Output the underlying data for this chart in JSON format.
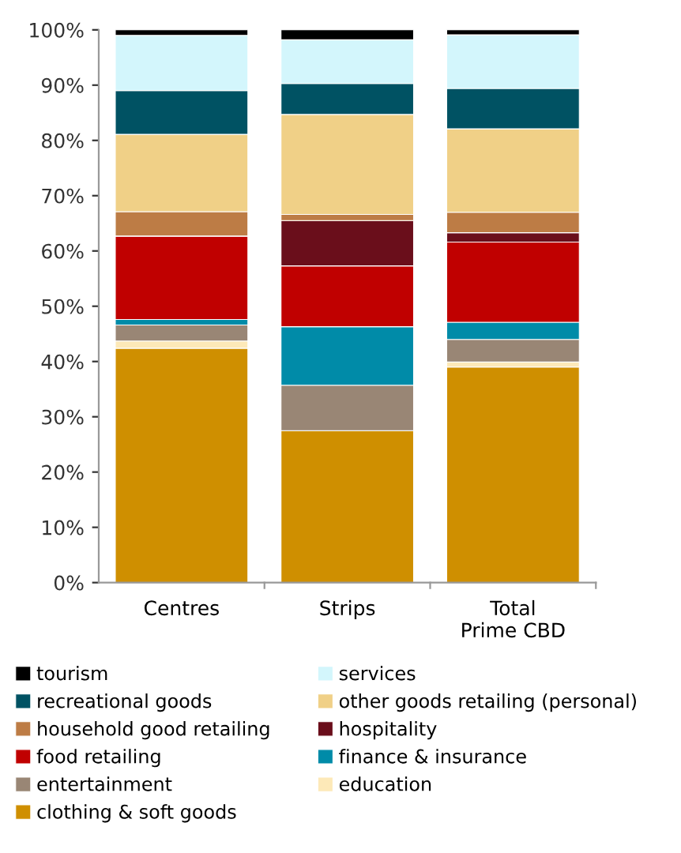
{
  "chart_data": {
    "type": "bar",
    "stacked": true,
    "categories": [
      "Centres",
      "Strips",
      "Total\nPrime CBD"
    ],
    "series": [
      {
        "name": "clothing & soft goods",
        "color": "#cf8f00",
        "values": [
          42.4,
          27.5,
          39.0
        ]
      },
      {
        "name": "education",
        "color": "#fde9b8",
        "values": [
          1.3,
          0,
          0.9
        ]
      },
      {
        "name": "entertainment",
        "color": "#998675",
        "values": [
          2.9,
          8.2,
          4.1
        ]
      },
      {
        "name": "finance & insurance",
        "color": "#008ba8",
        "values": [
          1.0,
          10.6,
          3.1
        ]
      },
      {
        "name": "food retailing",
        "color": "#c00000",
        "values": [
          15.1,
          11.0,
          14.5
        ]
      },
      {
        "name": "hospitality",
        "color": "#6a0e1b",
        "values": [
          0,
          8.2,
          1.7
        ]
      },
      {
        "name": "household good retailing",
        "color": "#bd7c45",
        "values": [
          4.4,
          1.1,
          3.7
        ]
      },
      {
        "name": "other goods retailing (personal)",
        "color": "#f0d087",
        "values": [
          14.0,
          18.1,
          15.1
        ]
      },
      {
        "name": "recreational goods",
        "color": "#005263",
        "values": [
          7.9,
          5.6,
          7.3
        ]
      },
      {
        "name": "services",
        "color": "#d3f6fc",
        "values": [
          10.0,
          7.9,
          9.7
        ]
      },
      {
        "name": "tourism",
        "color": "#000000",
        "values": [
          1.0,
          1.8,
          0.9
        ]
      }
    ],
    "ylim": [
      0,
      100
    ],
    "yticks": [
      {
        "value": 0,
        "label": "0%"
      },
      {
        "value": 10,
        "label": "10%"
      },
      {
        "value": 20,
        "label": "20%"
      },
      {
        "value": 30,
        "label": "30%"
      },
      {
        "value": 40,
        "label": "40%"
      },
      {
        "value": 50,
        "label": "50%"
      },
      {
        "value": 60,
        "label": "60%"
      },
      {
        "value": 70,
        "label": "70%"
      },
      {
        "value": 80,
        "label": "80%"
      },
      {
        "value": 90,
        "label": "90%"
      },
      {
        "value": 100,
        "label": "100%"
      }
    ],
    "grid": false,
    "legend": "bottom"
  }
}
